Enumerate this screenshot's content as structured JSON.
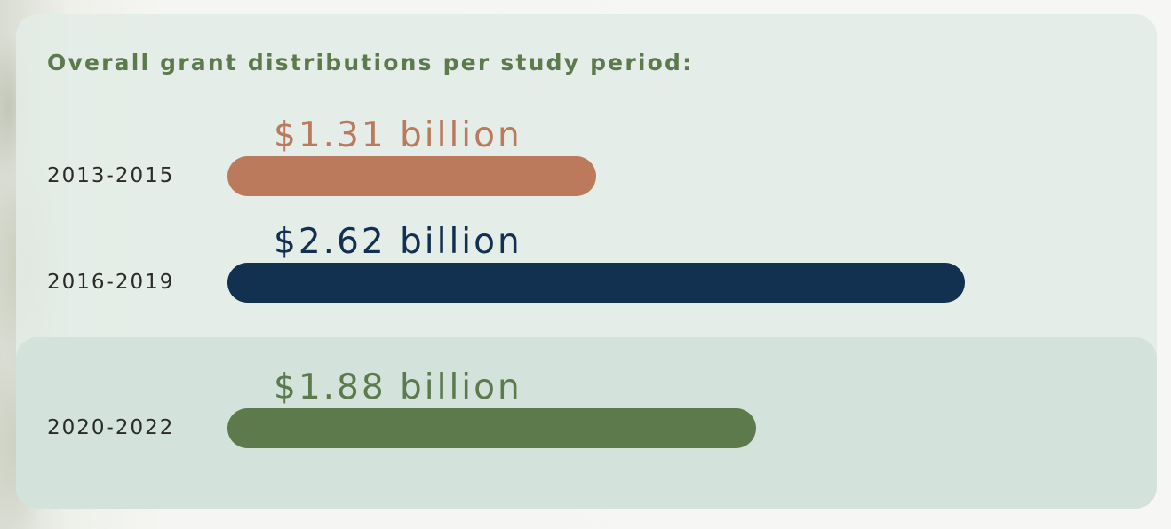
{
  "chart_data": {
    "type": "bar",
    "orientation": "horizontal",
    "title": "Overall grant distributions per study period:",
    "categories": [
      "2013-2015",
      "2016-2019",
      "2020-2022"
    ],
    "values": [
      1.31,
      2.62,
      1.88
    ],
    "value_labels": [
      "$1.31 billion",
      "$2.62 billion",
      "$1.88 billion"
    ],
    "unit": "billion USD",
    "colors": [
      "#bb7a5b",
      "#12304f",
      "#5c7a4c"
    ],
    "label_colors": [
      "#bb7a5b",
      "#12304f",
      "#5c7a4c"
    ],
    "grid": false,
    "legend": "none"
  }
}
